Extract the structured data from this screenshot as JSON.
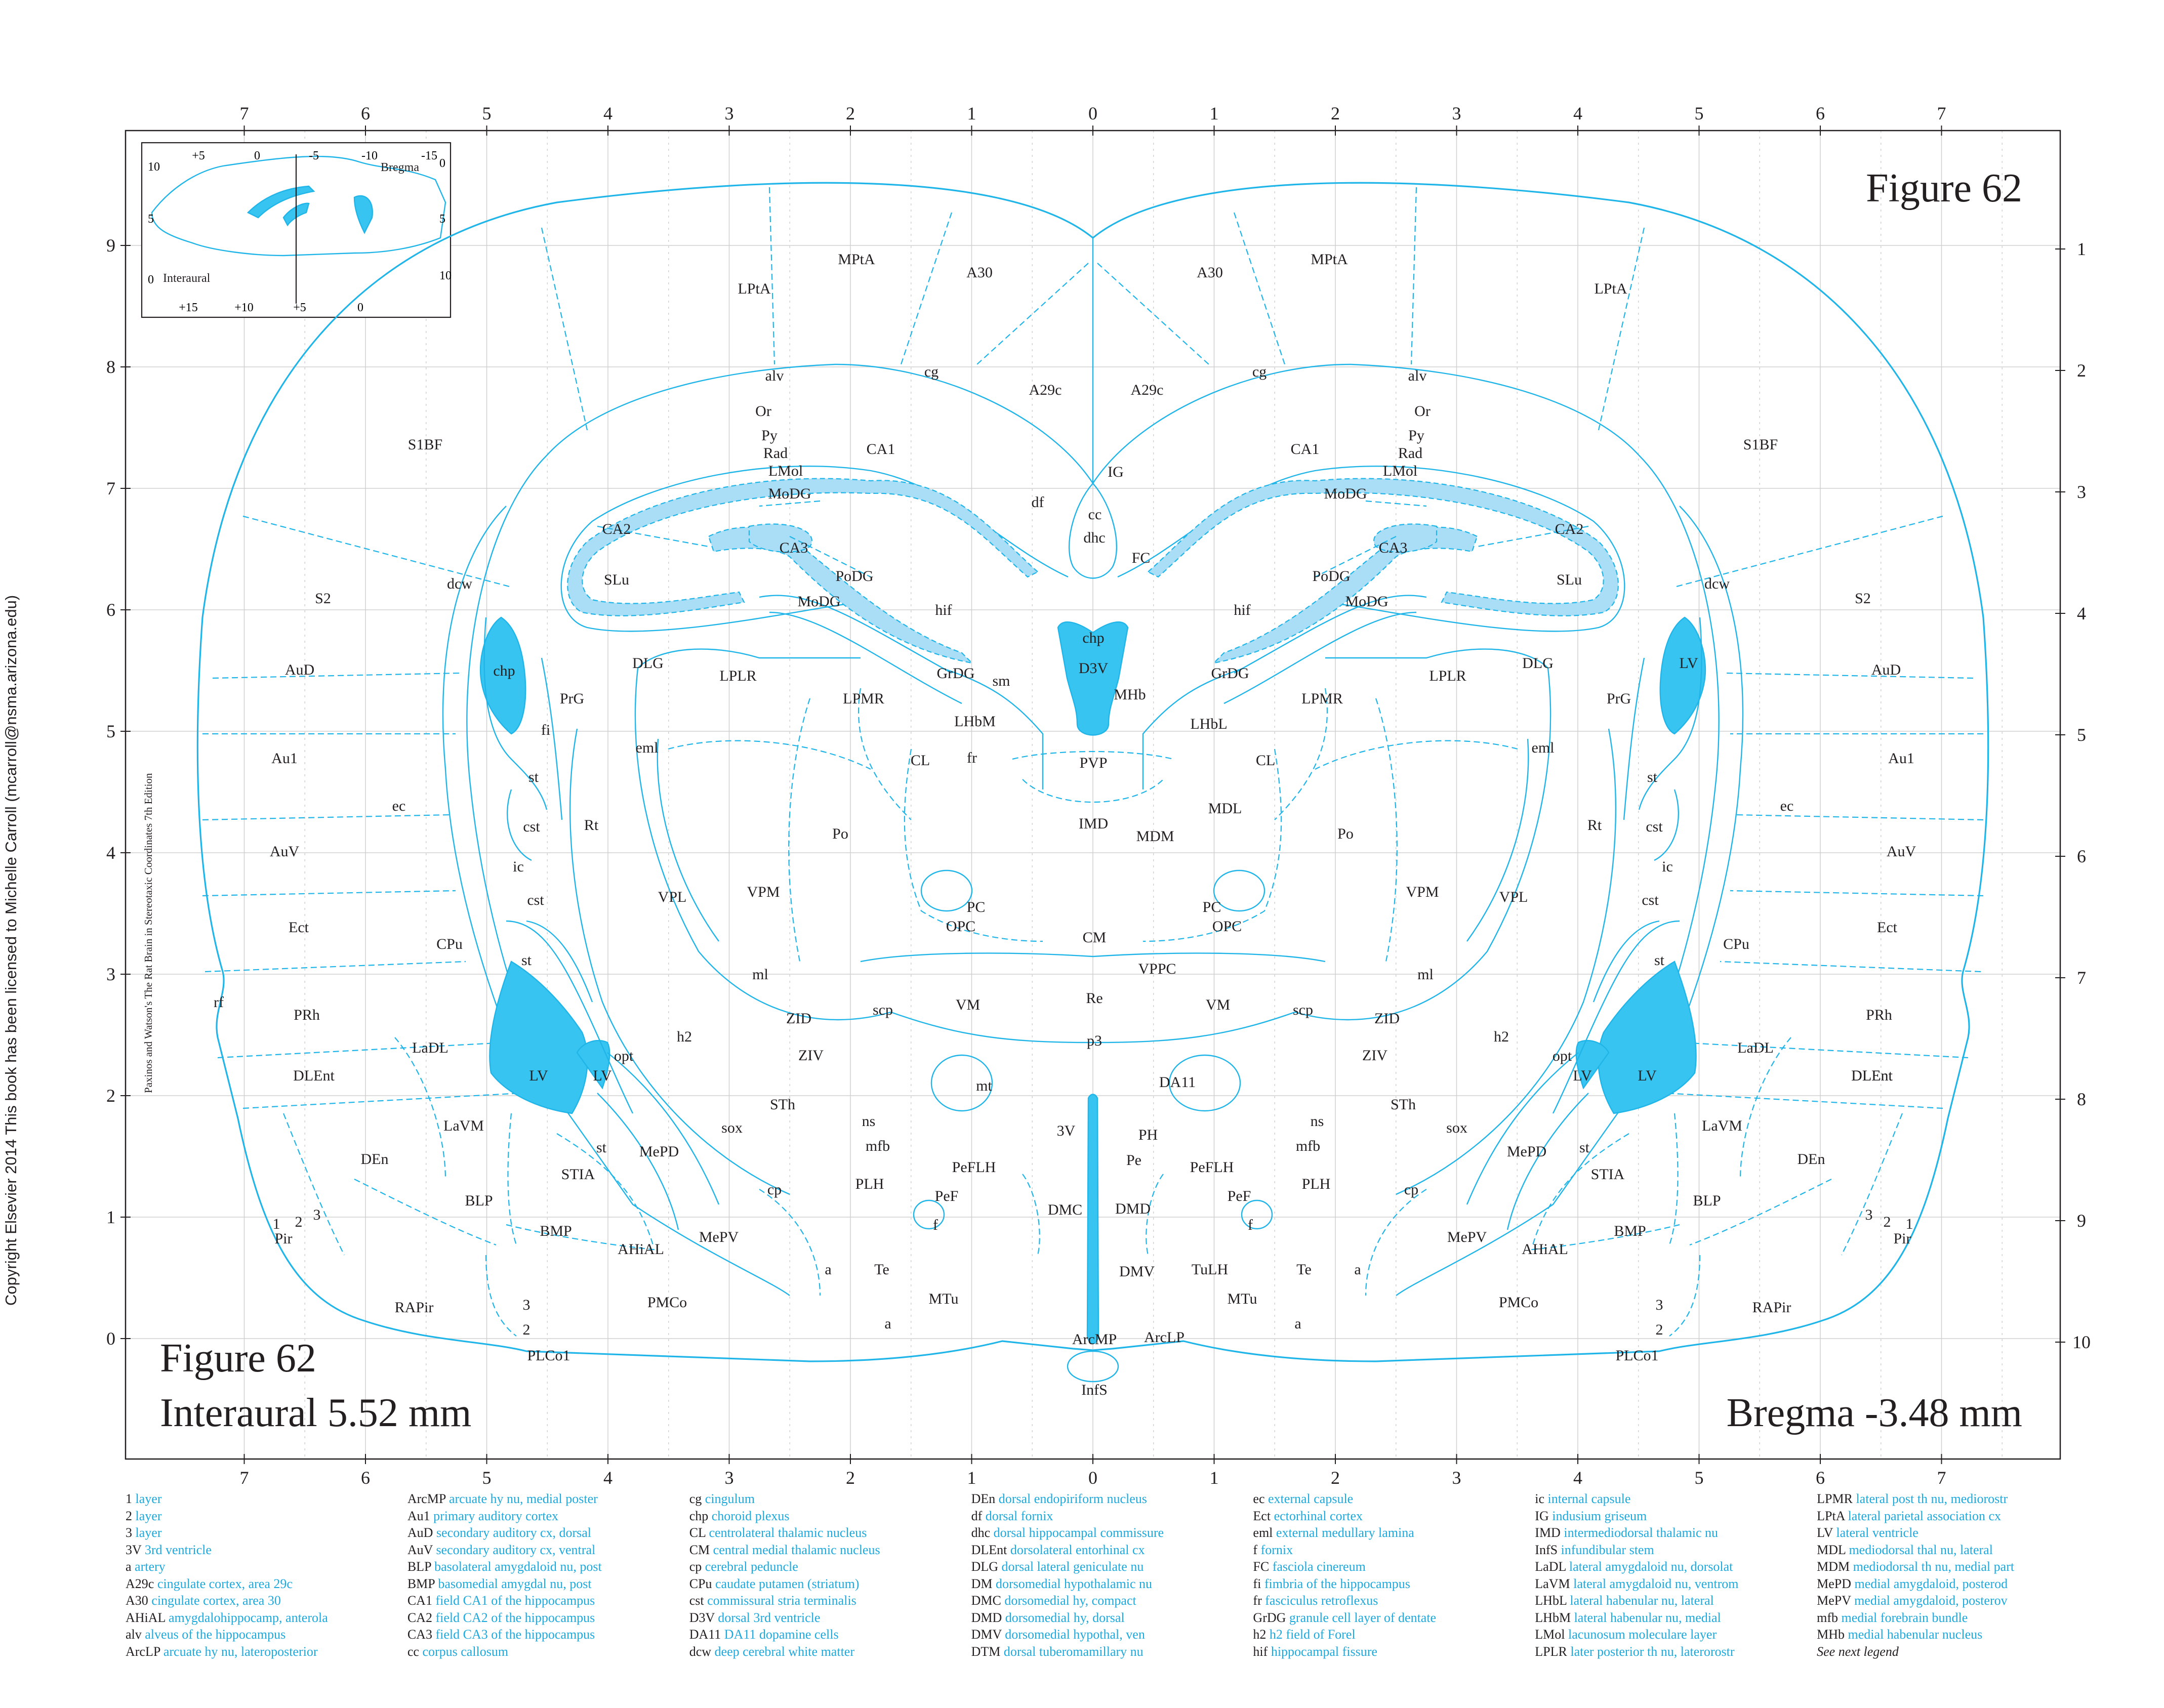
{
  "figure": {
    "title_top": "Figure 62",
    "title_bottom": "Figure 62",
    "interaural": "Interaural 5.52 mm",
    "bregma": "Bregma -3.48 mm"
  },
  "copyright": "Copyright Elsevier 2014 This book has been licensed to Michelle Carroll (mcarroll@nsma.arizona.edu)",
  "book_credit": "Paxinos and Watson's The Rat Brain in Stereotaxic Coordinates   7th Edition",
  "scale": {
    "top": [
      "7",
      "6",
      "5",
      "4",
      "3",
      "2",
      "1",
      "0",
      "1",
      "2",
      "3",
      "4",
      "5",
      "6",
      "7"
    ],
    "bottom": [
      "7",
      "6",
      "5",
      "4",
      "3",
      "2",
      "1",
      "0",
      "1",
      "2",
      "3",
      "4",
      "5",
      "6",
      "7"
    ],
    "left": [
      "9",
      "8",
      "7",
      "6",
      "5",
      "4",
      "3",
      "2",
      "1",
      "0"
    ],
    "right": [
      "1",
      "2",
      "3",
      "4",
      "5",
      "6",
      "7",
      "8",
      "9",
      "10"
    ]
  },
  "inset": {
    "top_ticks": [
      "+5",
      "0",
      "-5",
      "-10",
      "-15"
    ],
    "bottom_ticks": [
      "+15",
      "+10",
      "+5",
      "0"
    ],
    "left_ticks": [
      "10",
      "5",
      "0"
    ],
    "right_ticks": [
      "0",
      "5",
      "10"
    ],
    "bregma_label": "Bregma",
    "interaural_label": "Interaural"
  },
  "regions_left": {
    "MPtA": "MPtA",
    "LPtA": "LPtA",
    "A30": "A30",
    "A29c": "A29c",
    "S1BF": "S1BF",
    "S2": "S2",
    "AuD": "AuD",
    "Au1": "Au1",
    "AuV": "AuV",
    "Ect": "Ect",
    "PRh": "PRh",
    "DLEnt": "DLEnt",
    "alv": "alv",
    "cg": "cg",
    "Or": "Or",
    "Py": "Py",
    "Rad": "Rad",
    "CA1": "CA1",
    "LMol": "LMol",
    "MoDG": "MoDG",
    "CA2": "CA2",
    "CA3": "CA3",
    "SLu": "SLu",
    "PoDG": "PoDG",
    "MoDG2": "MoDG",
    "hif": "hif",
    "dcw": "dcw",
    "chp": "chp",
    "DLG": "DLG",
    "LPLR": "LPLR",
    "LPMR": "LPMR",
    "PrG": "PrG",
    "fi": "fi",
    "GrDG": "GrDG",
    "sm": "sm",
    "LHbM": "LHbM",
    "fr": "fr",
    "eml": "eml",
    "CL": "CL",
    "st": "st",
    "cst": "cst",
    "Rt": "Rt",
    "Po": "Po",
    "ec": "ec",
    "ic": "ic",
    "VPL": "VPL",
    "VPM": "VPM",
    "PC": "PC",
    "OPC": "OPC",
    "CPu": "CPu",
    "cst2": "cst",
    "st2": "st",
    "ml": "ml",
    "scp": "scp",
    "VM": "VM",
    "rf": "rf",
    "ZID": "ZID",
    "h2": "h2",
    "ZIV": "ZIV",
    "LaDL": "LaDL",
    "LV": "LV",
    "LV2": "LV",
    "opt": "opt",
    "mt": "mt",
    "STh": "STh",
    "ns": "ns",
    "mfb": "mfb",
    "LaVM": "LaVM",
    "sox": "sox",
    "DEn": "DEn",
    "st3": "st",
    "MePD": "MePD",
    "STIA": "STIA",
    "PeFLH": "PeFLH",
    "cp": "cp",
    "PLH": "PLH",
    "PeF": "PeF",
    "f": "f",
    "BLP": "BLP",
    "BMP": "BMP",
    "MePV": "MePV",
    "AHiAL": "AHiAL",
    "Pir": "Pir",
    "n1": "1",
    "n2": "2",
    "n3": "3",
    "a": "a",
    "Te": "Te",
    "MTu": "MTu",
    "a2": "a",
    "RAPir": "RAPir",
    "L3": "3",
    "L2": "2",
    "PMCo": "PMCo",
    "PLCo1": "PLCo1"
  },
  "regions_mid": {
    "IG": "IG",
    "cc": "cc",
    "df": "df",
    "dhc": "dhc",
    "FC": "FC",
    "chp": "chp",
    "D3V": "D3V",
    "MHb": "MHb",
    "PVP": "PVP",
    "IMD": "IMD",
    "MDM": "MDM",
    "CM": "CM",
    "VPPC": "VPPC",
    "Re": "Re",
    "p3": "p3",
    "DA11": "DA11",
    "3V": "3V",
    "PH": "PH",
    "Pe": "Pe",
    "DMC": "DMC",
    "DMD": "DMD",
    "DMV": "DMV",
    "ArcMP": "ArcMP",
    "ArcLP": "ArcLP",
    "InfS": "InfS"
  },
  "regions_right": {
    "MPtA": "MPtA",
    "LPtA": "LPtA",
    "A30": "A30",
    "A29c": "A29c",
    "S1BF": "S1BF",
    "S2": "S2",
    "AuD": "AuD",
    "Au1": "Au1",
    "AuV": "AuV",
    "Ect": "Ect",
    "PRh": "PRh",
    "DLEnt": "DLEnt",
    "cg": "cg",
    "alv": "alv",
    "Or": "Or",
    "Py": "Py",
    "Rad": "Rad",
    "CA1": "CA1",
    "LMol": "LMol",
    "MoDG": "MoDG",
    "CA2": "CA2",
    "CA3": "CA3",
    "SLu": "SLu",
    "PoDG": "PoDG",
    "MoDG2": "MoDG",
    "hif": "hif",
    "dcw": "dcw",
    "LV": "LV",
    "DLG": "DLG",
    "LPLR": "LPLR",
    "LPMR": "LPMR",
    "PrG": "PrG",
    "GrDG": "GrDG",
    "LHbL": "LHbL",
    "MDL": "MDL",
    "CL": "CL",
    "eml": "eml",
    "st": "st",
    "cst": "cst",
    "Rt": "Rt",
    "Po": "Po",
    "ec": "ec",
    "ic": "ic",
    "VPL": "VPL",
    "VPM": "VPM",
    "PC": "PC",
    "OPC": "OPC",
    "cst2": "cst",
    "CPu": "CPu",
    "st2": "st",
    "ml": "ml",
    "scp": "scp",
    "VM": "VM",
    "ZID": "ZID",
    "h2": "h2",
    "ZIV": "ZIV",
    "LaDL": "LaDL",
    "opt": "opt",
    "LV2": "LV",
    "LV3": "LV",
    "DLEnt2": "DLEnt",
    "ns": "ns",
    "STh": "STh",
    "mfb": "mfb",
    "sox": "sox",
    "MePD": "MePD",
    "st3": "st",
    "LaVM": "LaVM",
    "DEn": "DEn",
    "STIA": "STIA",
    "PeFLH": "PeFLH",
    "cp": "cp",
    "PLH": "PLH",
    "PeF": "PeF",
    "f": "f",
    "BLP": "BLP",
    "BMP": "BMP",
    "MePV": "MePV",
    "AHiAL": "AHiAL",
    "Pir": "Pir",
    "n1": "1",
    "n2": "2",
    "n3": "3",
    "TuLH": "TuLH",
    "Te": "Te",
    "a": "a",
    "MTu": "MTu",
    "a2": "a",
    "RAPir": "RAPir",
    "L3": "3",
    "L2": "2",
    "PMCo": "PMCo",
    "PLCo1": "PLCo1"
  },
  "legend": [
    [
      {
        "ab": "1",
        "full": "layer"
      },
      {
        "ab": "2",
        "full": "layer"
      },
      {
        "ab": "3",
        "full": "layer"
      },
      {
        "ab": "3V",
        "full": "3rd ventricle"
      },
      {
        "ab": "a",
        "full": "artery"
      },
      {
        "ab": "A29c",
        "full": "cingulate cortex, area 29c"
      },
      {
        "ab": "A30",
        "full": "cingulate cortex, area 30"
      },
      {
        "ab": "AHiAL",
        "full": "amygdalohippocamp, anterola"
      },
      {
        "ab": "alv",
        "full": "alveus of the hippocampus"
      },
      {
        "ab": "ArcLP",
        "full": "arcuate hy nu, lateroposterior"
      }
    ],
    [
      {
        "ab": "ArcMP",
        "full": "arcuate hy nu, medial poster"
      },
      {
        "ab": "Au1",
        "full": "primary auditory cortex"
      },
      {
        "ab": "AuD",
        "full": "secondary auditory cx, dorsal"
      },
      {
        "ab": "AuV",
        "full": "secondary auditory cx, ventral"
      },
      {
        "ab": "BLP",
        "full": "basolateral amygdaloid nu, post"
      },
      {
        "ab": "BMP",
        "full": "basomedial amygdal nu, post"
      },
      {
        "ab": "CA1",
        "full": "field CA1 of the hippocampus"
      },
      {
        "ab": "CA2",
        "full": "field CA2 of the hippocampus"
      },
      {
        "ab": "CA3",
        "full": "field CA3 of the hippocampus"
      },
      {
        "ab": "cc",
        "full": "corpus callosum"
      }
    ],
    [
      {
        "ab": "cg",
        "full": "cingulum"
      },
      {
        "ab": "chp",
        "full": "choroid plexus"
      },
      {
        "ab": "CL",
        "full": "centrolateral thalamic nucleus"
      },
      {
        "ab": "CM",
        "full": "central medial thalamic nucleus"
      },
      {
        "ab": "cp",
        "full": "cerebral peduncle"
      },
      {
        "ab": "CPu",
        "full": "caudate putamen (striatum)"
      },
      {
        "ab": "cst",
        "full": "commissural stria terminalis"
      },
      {
        "ab": "D3V",
        "full": "dorsal 3rd ventricle"
      },
      {
        "ab": "DA11",
        "full": "DA11 dopamine cells"
      },
      {
        "ab": "dcw",
        "full": "deep cerebral white matter"
      }
    ],
    [
      {
        "ab": "DEn",
        "full": "dorsal endopiriform nucleus"
      },
      {
        "ab": "df",
        "full": "dorsal fornix"
      },
      {
        "ab": "dhc",
        "full": "dorsal hippocampal commissure"
      },
      {
        "ab": "DLEnt",
        "full": "dorsolateral entorhinal cx"
      },
      {
        "ab": "DLG",
        "full": "dorsal lateral geniculate nu"
      },
      {
        "ab": "DM",
        "full": "dorsomedial hypothalamic nu"
      },
      {
        "ab": "DMC",
        "full": "dorsomedial hy, compact"
      },
      {
        "ab": "DMD",
        "full": "dorsomedial hy, dorsal"
      },
      {
        "ab": "DMV",
        "full": "dorsomedial hypothal, ven"
      },
      {
        "ab": "DTM",
        "full": "dorsal tuberomamillary nu"
      }
    ],
    [
      {
        "ab": "ec",
        "full": "external capsule"
      },
      {
        "ab": "Ect",
        "full": "ectorhinal cortex"
      },
      {
        "ab": "eml",
        "full": "external medullary lamina"
      },
      {
        "ab": "f",
        "full": "fornix"
      },
      {
        "ab": "FC",
        "full": "fasciola cinereum"
      },
      {
        "ab": "fi",
        "full": "fimbria of the hippocampus"
      },
      {
        "ab": "fr",
        "full": "fasciculus retroflexus"
      },
      {
        "ab": "GrDG",
        "full": "granule cell layer of dentate"
      },
      {
        "ab": "h2",
        "full": "h2 field of Forel"
      },
      {
        "ab": "hif",
        "full": "hippocampal fissure"
      }
    ],
    [
      {
        "ab": "ic",
        "full": "internal capsule"
      },
      {
        "ab": "IG",
        "full": "indusium griseum"
      },
      {
        "ab": "IMD",
        "full": "intermediodorsal thalamic nu"
      },
      {
        "ab": "InfS",
        "full": "infundibular stem"
      },
      {
        "ab": "LaDL",
        "full": "lateral amygdaloid nu, dorsolat"
      },
      {
        "ab": "LaVM",
        "full": "lateral amygdaloid nu, ventrom"
      },
      {
        "ab": "LHbL",
        "full": "lateral habenular nu, lateral"
      },
      {
        "ab": "LHbM",
        "full": "lateral habenular nu, medial"
      },
      {
        "ab": "LMol",
        "full": "lacunosum moleculare layer"
      },
      {
        "ab": "LPLR",
        "full": "later posterior th nu, laterorostr"
      }
    ],
    [
      {
        "ab": "LPMR",
        "full": "lateral post th nu, mediorostr"
      },
      {
        "ab": "LPtA",
        "full": "lateral parietal association cx"
      },
      {
        "ab": "LV",
        "full": "lateral ventricle"
      },
      {
        "ab": "MDL",
        "full": "mediodorsal thal nu, lateral"
      },
      {
        "ab": "MDM",
        "full": "mediodorsal th nu, medial part"
      },
      {
        "ab": "MePD",
        "full": "medial amygdaloid, posterod"
      },
      {
        "ab": "MePV",
        "full": "medial amygdaloid, posterov"
      },
      {
        "ab": "mfb",
        "full": "medial forebrain bundle"
      },
      {
        "ab": "MHb",
        "full": "medial habenular nucleus"
      },
      {
        "ab": "",
        "full": "",
        "note": "See next legend"
      }
    ]
  ]
}
